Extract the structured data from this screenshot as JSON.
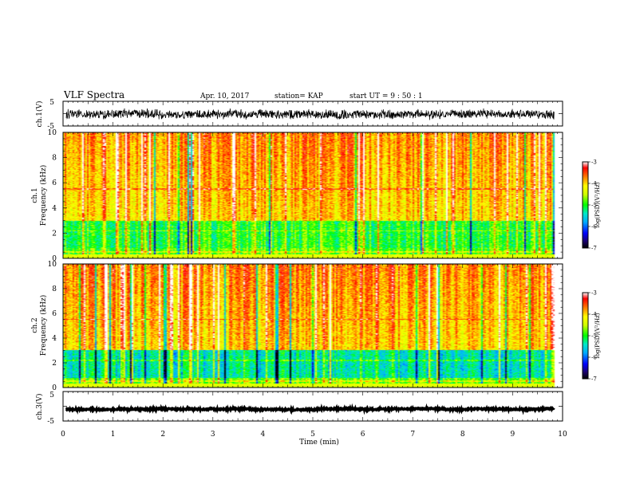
{
  "header": {
    "title": "VLF Spectra",
    "date": "Apr. 10, 2017",
    "station": "station= KAP",
    "start": "start  UT =   9 : 50 : 1"
  },
  "chart_data": [
    {
      "name": "ch1-waveform",
      "type": "line",
      "ylabel": "ch.1(V)",
      "ylim": [
        -5,
        5
      ],
      "y_tick_labels": [
        "-5",
        "5"
      ],
      "xlim": [
        0,
        10
      ],
      "data_end": 9.83,
      "mean": -0.2,
      "amplitude": 1.6
    },
    {
      "name": "ch1-spectrogram",
      "type": "heatmap",
      "ylabel_lines": [
        "ch.1",
        "Frequency (kHz)"
      ],
      "ylim": [
        0,
        10
      ],
      "y_ticks": [
        0,
        2,
        4,
        6,
        8,
        10
      ],
      "xlim": [
        0,
        10
      ],
      "data_end": 9.83,
      "colorbar": {
        "label": "log(PSD)(V²/Hz)",
        "range": [
          -7,
          -3
        ],
        "ticks": [
          -7,
          -6,
          -5,
          -4,
          -3
        ],
        "tick_labels": [
          "-7",
          "-6",
          "-5",
          "-4",
          "-3"
        ]
      }
    },
    {
      "name": "ch2-spectrogram",
      "type": "heatmap",
      "ylabel_lines": [
        "ch.2",
        "Frequency (kHz)"
      ],
      "ylim": [
        0,
        10
      ],
      "y_ticks": [
        0,
        2,
        4,
        6,
        8,
        10
      ],
      "xlim": [
        0,
        10
      ],
      "data_end": 9.83,
      "colorbar": {
        "label": "log(PSD)(V²/Hz)",
        "range": [
          -7,
          -3
        ],
        "ticks": [
          -7,
          -6,
          -5,
          -4,
          -3
        ],
        "tick_labels": [
          "-7",
          "-6",
          "-5",
          "-4",
          "-3"
        ]
      }
    },
    {
      "name": "ch3-waveform",
      "type": "line",
      "ylabel": "ch.3(V)",
      "ylim": [
        -5,
        5
      ],
      "y_tick_labels": [
        "-5",
        "5"
      ],
      "xlim": [
        0,
        10
      ],
      "data_end": 9.83,
      "mean": -1.0,
      "amplitude": 0.2
    }
  ],
  "x_axis": {
    "label": "Time (min)",
    "range": [
      0,
      10
    ],
    "ticks": [
      0,
      1,
      2,
      3,
      4,
      5,
      6,
      7,
      8,
      9,
      10
    ],
    "tick_labels": [
      "0",
      "1",
      "2",
      "3",
      "4",
      "5",
      "6",
      "7",
      "8",
      "9",
      "10"
    ]
  }
}
